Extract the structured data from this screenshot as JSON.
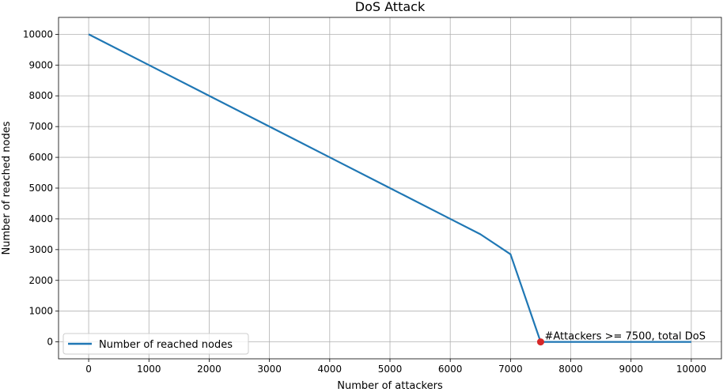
{
  "chart_data": {
    "type": "line",
    "title": "DoS Attack",
    "xlabel": "Number of attackers",
    "ylabel": "Number of reached nodes",
    "xlim": [
      -500,
      10500
    ],
    "ylim": [
      -550,
      10550
    ],
    "xticks": [
      0,
      1000,
      2000,
      3000,
      4000,
      5000,
      6000,
      7000,
      8000,
      9000,
      10000
    ],
    "yticks": [
      0,
      1000,
      2000,
      3000,
      4000,
      5000,
      6000,
      7000,
      8000,
      9000,
      10000
    ],
    "grid": true,
    "legend_position": "lower-left",
    "series": [
      {
        "name": "Number of reached nodes",
        "color": "#1f77b4",
        "x": [
          0,
          1000,
          2000,
          3000,
          4000,
          5000,
          6000,
          6500,
          7000,
          7500,
          8000,
          9000,
          10000
        ],
        "y": [
          10000,
          9000,
          8000,
          7000,
          6000,
          5000,
          4000,
          3500,
          2850,
          0,
          0,
          0,
          0
        ]
      }
    ],
    "annotation": {
      "x": 7500,
      "y": 0,
      "text": "#Attackers >= 7500, total DoS",
      "marker_color": "#d62728"
    }
  }
}
